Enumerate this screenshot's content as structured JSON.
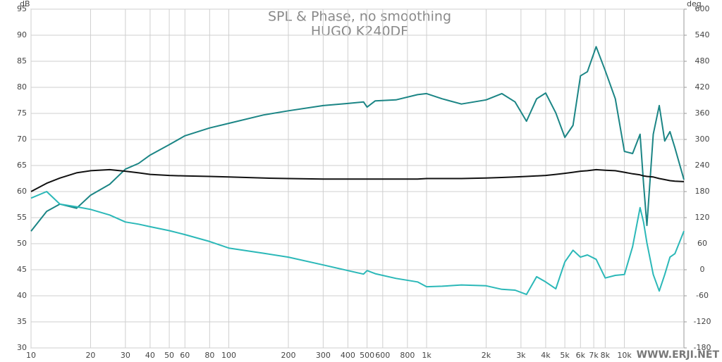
{
  "chart_data": {
    "type": "line",
    "title": "SPL & Phase, no smoothing",
    "subtitle": "HUGO K240DF",
    "y_unit": "dB",
    "y2_unit": "deg",
    "watermark": "WWW.ERJI.NET",
    "log_x": true,
    "grid": true,
    "x": [
      10,
      12,
      14,
      17,
      20,
      25,
      30,
      35,
      40,
      50,
      60,
      80,
      100,
      150,
      200,
      300,
      400,
      480,
      500,
      550,
      700,
      900,
      1000,
      1200,
      1500,
      2000,
      2400,
      2800,
      3200,
      3600,
      4000,
      4500,
      5000,
      5500,
      6000,
      6500,
      7200,
      8000,
      9000,
      10000,
      11000,
      12000,
      12500,
      13000,
      14000,
      15000,
      16000,
      17000,
      18000,
      20000
    ],
    "xlim": [
      10,
      20000
    ],
    "xticks": [
      10,
      20,
      30,
      40,
      50,
      60,
      80,
      100,
      200,
      300,
      400,
      500,
      600,
      800,
      {
        "value": 1000,
        "label": "1k"
      },
      {
        "value": 2000,
        "label": "2k"
      },
      {
        "value": 3000,
        "label": "3k"
      },
      {
        "value": 4000,
        "label": "4k"
      },
      {
        "value": 5000,
        "label": "5k"
      },
      {
        "value": 6000,
        "label": "6k"
      },
      {
        "value": 7000,
        "label": "7k"
      },
      {
        "value": 8000,
        "label": "8k"
      },
      {
        "value": 10000,
        "label": "10k"
      }
    ],
    "ylim": [
      30,
      95
    ],
    "yticks": [
      30,
      35,
      40,
      45,
      50,
      55,
      60,
      65,
      70,
      75,
      80,
      85,
      90,
      95
    ],
    "y2lim": [
      -180,
      600
    ],
    "y2ticks": [
      -180,
      -120,
      -60,
      0,
      60,
      120,
      180,
      240,
      300,
      360,
      420,
      480,
      540,
      600
    ],
    "series": [
      {
        "color": "#1b8585",
        "axis": "y",
        "values": [
          52.4,
          56.2,
          57.6,
          56.8,
          59.3,
          61.4,
          64.3,
          65.4,
          67,
          69,
          70.7,
          72.2,
          73.1,
          74.7,
          75.5,
          76.5,
          76.9,
          77.2,
          76.2,
          77.4,
          77.6,
          78.6,
          78.8,
          77.8,
          76.8,
          77.6,
          78.8,
          77.2,
          73.5,
          77.8,
          78.9,
          75.1,
          70.4,
          72.7,
          82.2,
          83,
          87.8,
          83.2,
          77.8,
          67.7,
          67.3,
          71,
          61.6,
          53.5,
          71,
          76.5,
          69.7,
          71.5,
          68.4,
          62.3
        ]
      },
      {
        "color": "#2bb8b8",
        "axis": "y2",
        "values": [
          165,
          180,
          151,
          145,
          139,
          126,
          110,
          105,
          99,
          90,
          81,
          65,
          50,
          38,
          29,
          11,
          -2,
          -10,
          -2,
          -9,
          -20,
          -28,
          -39,
          -38,
          -35,
          -37,
          -45,
          -47,
          -57,
          -16,
          -28,
          -44,
          18,
          45,
          29,
          34,
          24,
          -19,
          -13,
          -11,
          53,
          143,
          110,
          62,
          -11,
          -49,
          -11,
          29,
          37,
          89
        ]
      },
      {
        "color": "#111111",
        "axis": "y",
        "values": [
          60,
          61.6,
          62.6,
          63.6,
          64,
          64.2,
          63.9,
          63.6,
          63.3,
          63.1,
          63,
          62.9,
          62.8,
          62.6,
          62.5,
          62.4,
          62.4,
          62.4,
          62.4,
          62.4,
          62.4,
          62.4,
          62.5,
          62.5,
          62.5,
          62.6,
          62.7,
          62.8,
          62.9,
          63,
          63.1,
          63.3,
          63.5,
          63.7,
          63.9,
          64,
          64.2,
          64.1,
          64,
          63.7,
          63.4,
          63.2,
          63,
          62.9,
          62.8,
          62.5,
          62.3,
          62.1,
          62,
          61.9
        ]
      }
    ]
  }
}
